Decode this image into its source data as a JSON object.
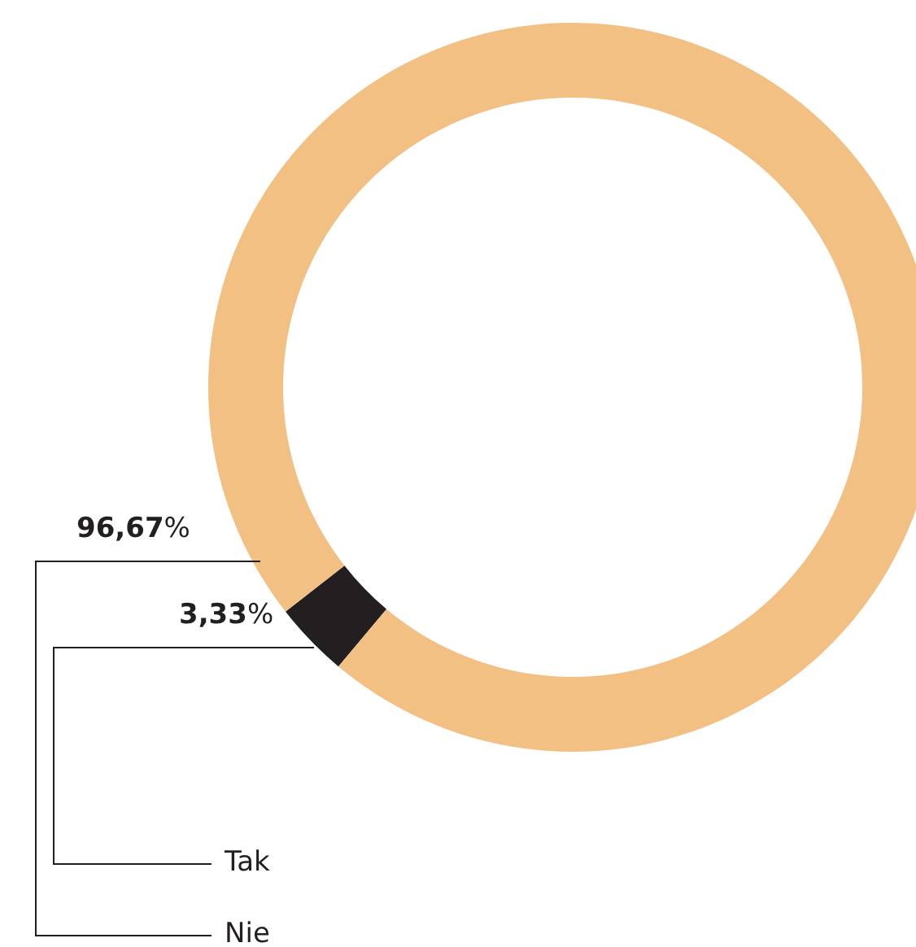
{
  "chart_data": {
    "type": "donut",
    "categories": [
      "Tak",
      "Nie"
    ],
    "values": [
      3.33,
      96.67
    ],
    "colors": [
      "#231f20",
      "#f2c083"
    ],
    "value_labels": [
      "3,33%",
      "96,67%"
    ],
    "legend": false
  }
}
